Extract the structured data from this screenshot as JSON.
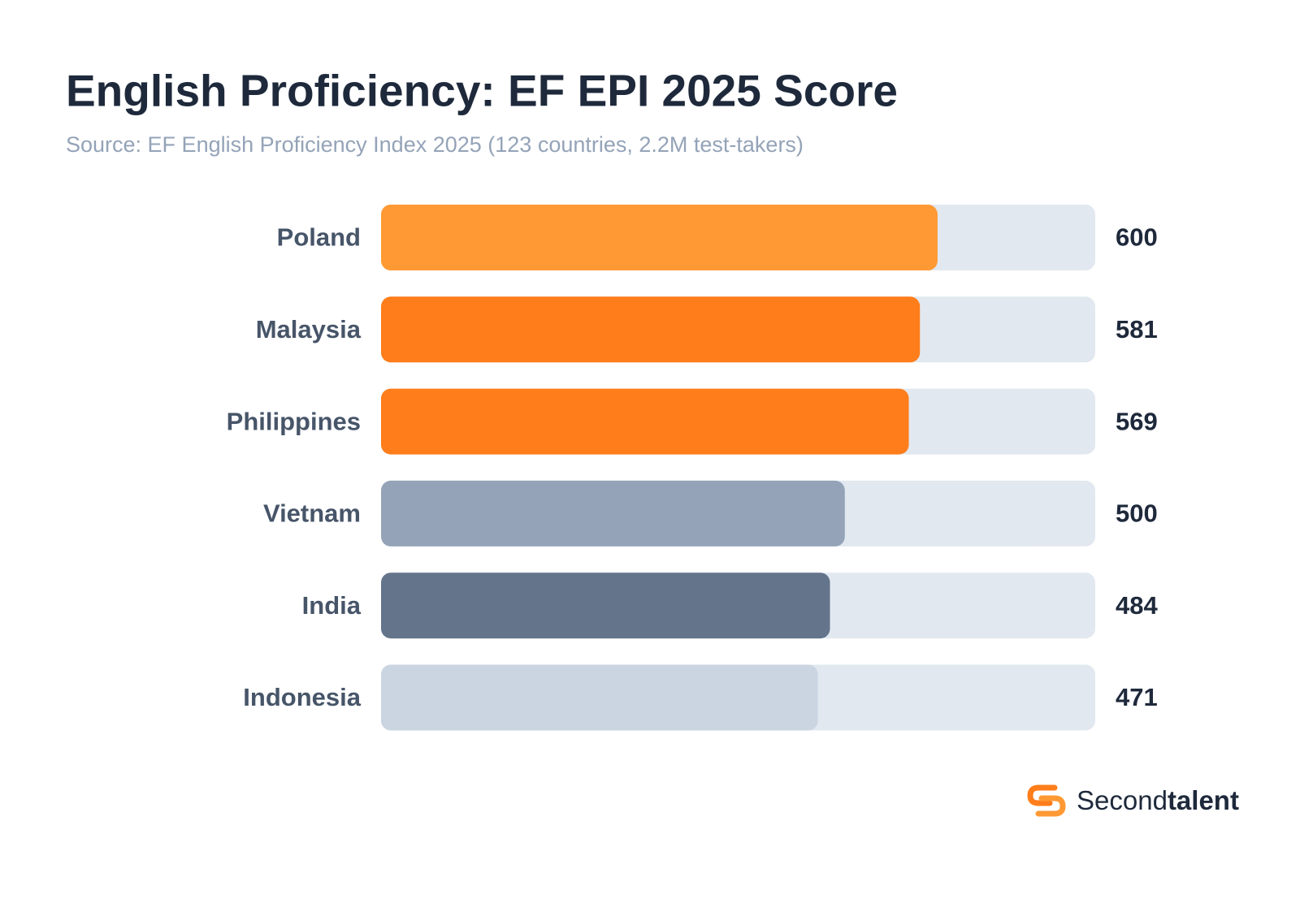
{
  "chart_data": {
    "type": "barh",
    "title": "English Proficiency: EF EPI 2025 Score",
    "subtitle": "Source: EF English Proficiency Index 2025 (123 countries, 2.2M test-takers)",
    "categories": [
      "Poland",
      "Malaysia",
      "Philippines",
      "Vietnam",
      "India",
      "Indonesia"
    ],
    "values": [
      600,
      581,
      569,
      500,
      484,
      471
    ],
    "colors": [
      "#ff9933",
      "#ff7d1a",
      "#ff7d1a",
      "#94a3b8",
      "#64748b",
      "#cbd5e1"
    ],
    "track_color": "#e2e8f0",
    "xlim": [
      0,
      770
    ]
  },
  "brand": {
    "first": "Second",
    "second": "talent"
  }
}
